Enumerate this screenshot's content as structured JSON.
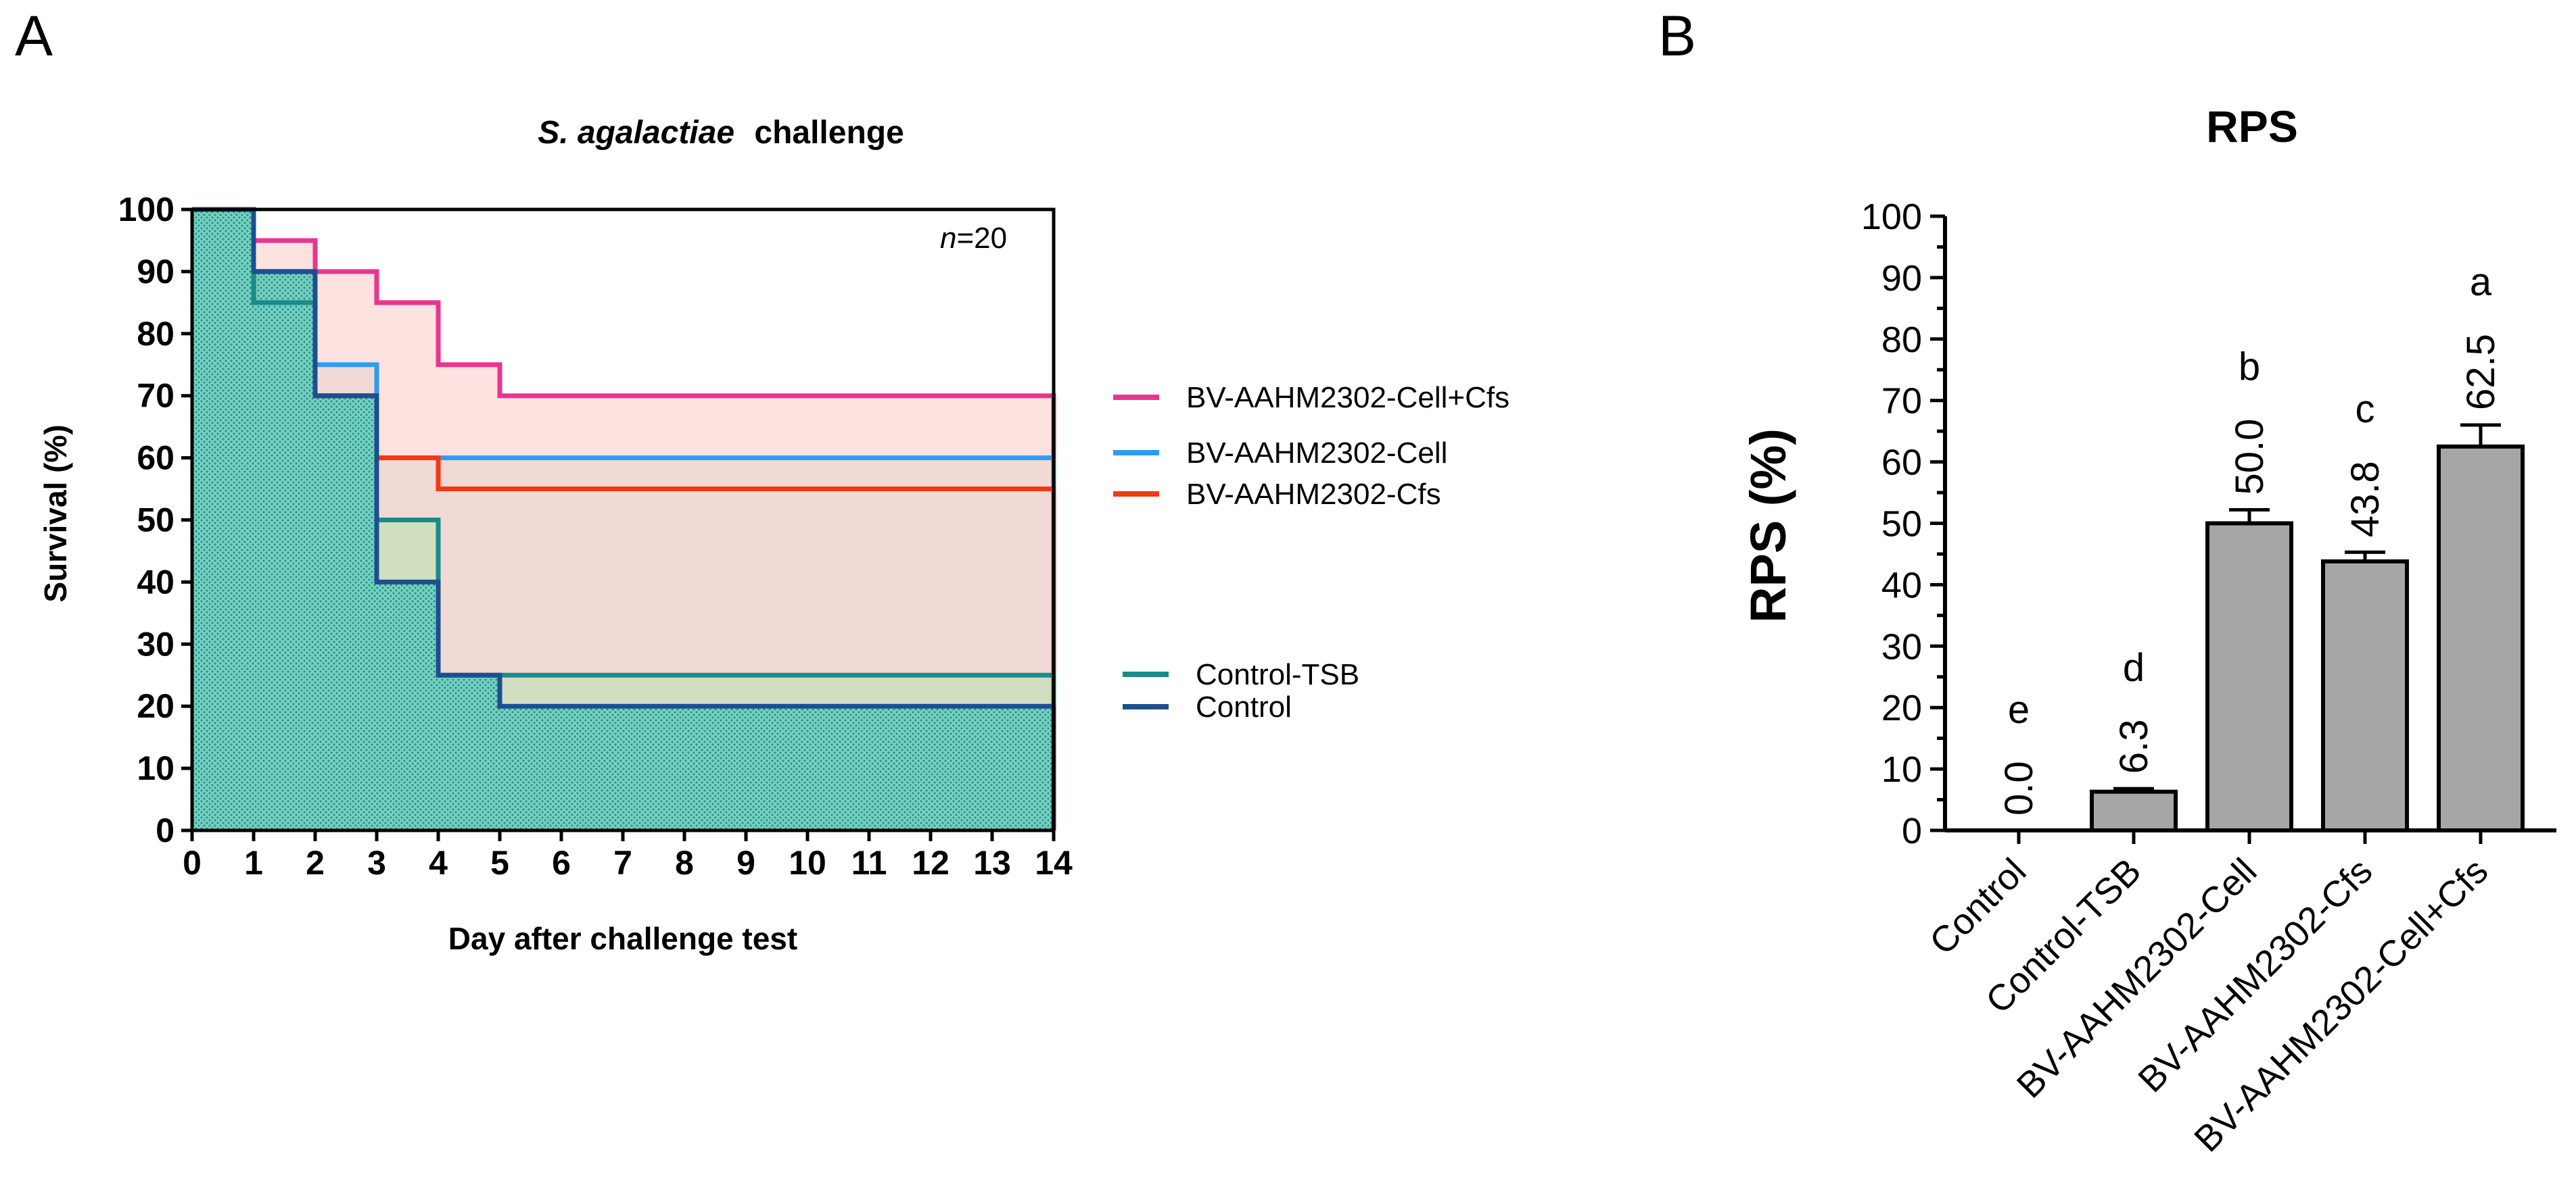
{
  "panel_a_label": "A",
  "panel_b_label": "B",
  "chart_data": [
    {
      "type": "line",
      "subtype": "kaplan-meier",
      "title_italic": "S. agalactiae",
      "title_rest": "challenge",
      "xlabel": "Day after challenge test",
      "ylabel": "Survival (%)",
      "xlim": [
        0,
        14
      ],
      "ylim": [
        0,
        100
      ],
      "x_ticks": [
        0,
        1,
        2,
        3,
        4,
        5,
        6,
        7,
        8,
        9,
        10,
        11,
        12,
        13,
        14
      ],
      "y_ticks": [
        0,
        10,
        20,
        30,
        40,
        50,
        60,
        70,
        80,
        90,
        100
      ],
      "annotation_italic": "n",
      "annotation_rest": "=20",
      "series": [
        {
          "name": "BV-AAHM2302-Cell+Cfs",
          "color": "#e8368f",
          "fill": "#fde2df",
          "steps": [
            [
              0,
              100
            ],
            [
              1,
              95
            ],
            [
              2,
              90
            ],
            [
              3,
              85
            ],
            [
              4,
              75
            ],
            [
              5,
              70
            ],
            [
              14,
              70
            ]
          ]
        },
        {
          "name": "BV-AAHM2302-Cell",
          "color": "#2f9bf0",
          "steps": [
            [
              0,
              100
            ],
            [
              1,
              90
            ],
            [
              2,
              75
            ],
            [
              3,
              60
            ],
            [
              14,
              60
            ]
          ]
        },
        {
          "name": "BV-AAHM2302-Cfs",
          "color": "#f23a10",
          "steps": [
            [
              0,
              100
            ],
            [
              1,
              90
            ],
            [
              2,
              70
            ],
            [
              3,
              60
            ],
            [
              4,
              55
            ],
            [
              14,
              55
            ]
          ]
        },
        {
          "name": "Control-TSB",
          "color": "#1a8a8a",
          "fill": "#b6ecb2",
          "steps": [
            [
              0,
              100
            ],
            [
              1,
              85
            ],
            [
              2,
              70
            ],
            [
              3,
              50
            ],
            [
              4,
              25
            ],
            [
              14,
              25
            ]
          ]
        },
        {
          "name": "Control",
          "color": "#1d4f8f",
          "fill": "#6fd3c4",
          "steps": [
            [
              0,
              100
            ],
            [
              1,
              90
            ],
            [
              2,
              70
            ],
            [
              3,
              40
            ],
            [
              4,
              25
            ],
            [
              5,
              20
            ],
            [
              14,
              20
            ]
          ]
        }
      ]
    },
    {
      "type": "bar",
      "title": "RPS",
      "ylabel": "RPS (%)",
      "ylim": [
        0,
        100
      ],
      "y_ticks": [
        0,
        10,
        20,
        30,
        40,
        50,
        60,
        70,
        80,
        90,
        100
      ],
      "bar_color": "#a6a6a6",
      "categories": [
        "Control",
        "Control-TSB",
        "BV-AAHM2302-Cell",
        "BV-AAHM2302-Cfs",
        "BV-AAHM2302-Cell+Cfs"
      ],
      "values": [
        0.0,
        6.3,
        50.0,
        43.8,
        62.5
      ],
      "errors": [
        0,
        0.5,
        2.2,
        1.5,
        3.5
      ],
      "value_labels": [
        "0.0",
        "6.3",
        "50.0",
        "43.8",
        "62.5"
      ],
      "letters": [
        "e",
        "d",
        "b",
        "c",
        "a"
      ]
    }
  ]
}
